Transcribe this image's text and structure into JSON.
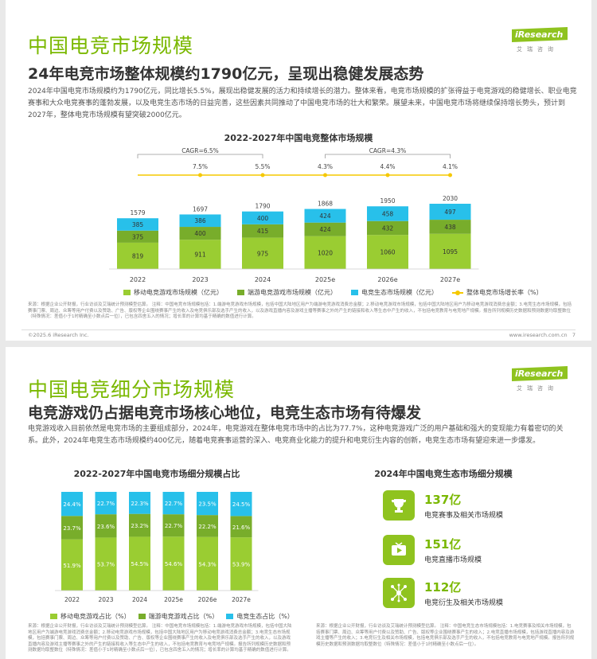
{
  "slide1": {
    "title": "中国电竞市场规模",
    "subtitle": "24年电竞市场整体规模约1790亿元，呈现出稳健发展态势",
    "paragraph": "2024年中国电竞市场规模约为1790亿元，同比增长5.5%，展现出稳健发展的活力和持续增长的潜力。整体来看，电竞市场规模的扩张得益于电竞游戏的稳健增长、职业电竞赛事和大众电竞赛事的蓬勃发展，以及电竞生态市场的日益完善，这些因素共同推动了中国电竞市场的壮大和繁荣。展望未来，中国电竞市场将继续保持增长势头，预计到2027年，整体电竞市场规模有望突破2000亿元。",
    "logo_text": "iResearch",
    "logo_cn": "艾瑞咨询",
    "chart_title": "2022-2027年中国电竞整体市场规模",
    "notes": "来源：根据企业公开财报，行业访谈及艾瑞统计预测模型估算。\n注释：中国电竞市场规模包括：1.端游电竞游戏市场规模，包括中国大陆地区用户为端游电竞游戏消费总金额；2.移动电竞游戏市场规模，包括中国大陆地区用户为移动电竞游戏消费总金额；3.电竞生态市场规模，包括赛事门票、周边、众筹等用户付费以及赞助、广告、版权等企业围绕赛事产生的收入及电竞俱乐部及选手产生的收入，以及游戏直播内容及游戏主播等赛事之外的产生的链接和收入等生态中产生的收入，不包括电竞教育与电竞地产规模。报告所列规模历史数据和预测数据均取整数位（特殊情况：差值小于1时精确至小数点后一位），已包含四舍五入的情况；增长率的计算均基于精确的数值进行计算。",
    "footer_left": "©2025.6 iResearch Inc.",
    "footer_right": "www.iresearch.com.cn",
    "page_number": "7"
  },
  "slide2": {
    "title": "中国电竞细分市场规模",
    "subtitle": "电竞游戏仍占据电竞市场核心地位，电竞生态市场有待爆发",
    "paragraph": "电竞游戏收入目前依然是电竞市场的主要组成部分，2024年，电竞游戏在整体电竞市场中的占比为77.7%，这种电竞游戏广泛的用户基础和强大的变现能力有着密切的关系。此外，2024年电竞生态市场规模约400亿元，随着电竞赛事运营的深入、电竞商业化能力的提升和电竞衍生内容的创新，电竞生态市场有望迎来进一步爆发。",
    "logo_text": "iResearch",
    "logo_cn": "艾瑞咨询",
    "share_chart_title": "2022-2027年中国电竞市场细分规模占比",
    "eco_title": "2024年中国电竞生态市场细分规模",
    "eco_items": [
      {
        "value": "137亿",
        "label": "电竞赛事及相关市场规模",
        "icon": "trophy-icon"
      },
      {
        "value": "151亿",
        "label": "电竞直播市场规模",
        "icon": "tv-play-icon"
      },
      {
        "value": "112亿",
        "label": "电竞衍生及相关市场规模",
        "icon": "network-icon"
      }
    ],
    "notes_left": "来源：根据企业公开财报，行业访谈及艾瑞统计预测模型估算。\n注释：中国电竞市场规模包括：1.端游电竞游戏市场规模，包括中国大陆地区用户为端游电竞游戏消费总金额；2.移动电竞游戏市场规模，包括中国大陆地区用户为移动电竞游戏消费总金额；3.电竞生态市场规模，包括赛事门票、周边、众筹等用户付费以及赞助、广告、版权等企业围绕赛事产生的收入及电竞俱乐部及选手产生的收入，以及游戏直播内容及游戏主播等赛事之外的产生的链接和收入等生态中产生的收入，不包括电竞教育与电竞地产规模。报告所列规模历史数据和预测数据均取整数位（特殊情况：差值小于1时精确至小数点后一位），已包含四舍五入的情况；增长率的计算均基于精确的数值进行计算。",
    "notes_right": "来源：根据企业公开财报，行业访谈及艾瑞统计预测模型估算。\n注释：中国电竞生态市场规模包括：1.电竞赛事及相关市场规模，包括赛事门票、周边、众筹等用户付费以及赞助、广告、版权等企业围绕赛事产生的收入；2.电竞直播市场规模，包括游戏直播内容及游戏主播等产生的收入；3.电竞衍生及相关市场规模，包括电竞俱乐部及选手产生的收入，不包括电竞教育与电竞地产规模。报告所列规模历史数据和预测数据均取整数位（特殊情况：差值小于1时精确至小数点后一位）。"
  },
  "chart_data": [
    {
      "type": "bar",
      "title": "2022-2027年中国电竞整体市场规模",
      "categories": [
        "2022",
        "2023",
        "2024",
        "2025e",
        "2026e",
        "2027e"
      ],
      "series": [
        {
          "name": "移动电竞游戏市场规模（亿元）",
          "values": [
            819,
            911,
            975,
            1020,
            1060,
            1095
          ],
          "color": "#9acd32"
        },
        {
          "name": "端游电竞游戏市场规模（亿元）",
          "values": [
            375,
            400,
            415,
            424,
            432,
            438
          ],
          "color": "#78ad2b"
        },
        {
          "name": "电竞生态市场规模（亿元）",
          "values": [
            385,
            386,
            400,
            424,
            458,
            497
          ],
          "color": "#28c0ea"
        }
      ],
      "totals": [
        1579,
        1697,
        1790,
        1868,
        1950,
        2030
      ],
      "line": {
        "name": "整体电竞市场增长率（%）",
        "values": [
          "7.5%",
          "5.5%",
          "4.3%",
          "4.4%",
          "4.1%"
        ],
        "color": "#f5c800"
      },
      "cagr": [
        {
          "label": "CAGR=6.5%",
          "from": "2022",
          "to": "2024"
        },
        {
          "label": "CAGR=4.3%",
          "from": "2025e",
          "to": "2027e"
        }
      ]
    },
    {
      "type": "bar",
      "title": "2022-2027年中国电竞市场细分规模占比",
      "categories": [
        "2022",
        "2023",
        "2024",
        "2025e",
        "2026e",
        "2027e"
      ],
      "series": [
        {
          "name": "移动电竞游戏占比（%）",
          "values": [
            51.9,
            53.7,
            54.5,
            54.6,
            54.3,
            53.9
          ],
          "color": "#9acd32"
        },
        {
          "name": "端游电竞游戏占比（%）",
          "values": [
            23.7,
            23.6,
            23.2,
            22.7,
            22.2,
            21.6
          ],
          "color": "#78ad2b"
        },
        {
          "name": "电竞生态占比（%）",
          "values": [
            24.4,
            22.7,
            22.3,
            22.7,
            23.5,
            24.5
          ],
          "color": "#28c0ea"
        }
      ],
      "ylim": [
        0,
        100
      ]
    }
  ]
}
